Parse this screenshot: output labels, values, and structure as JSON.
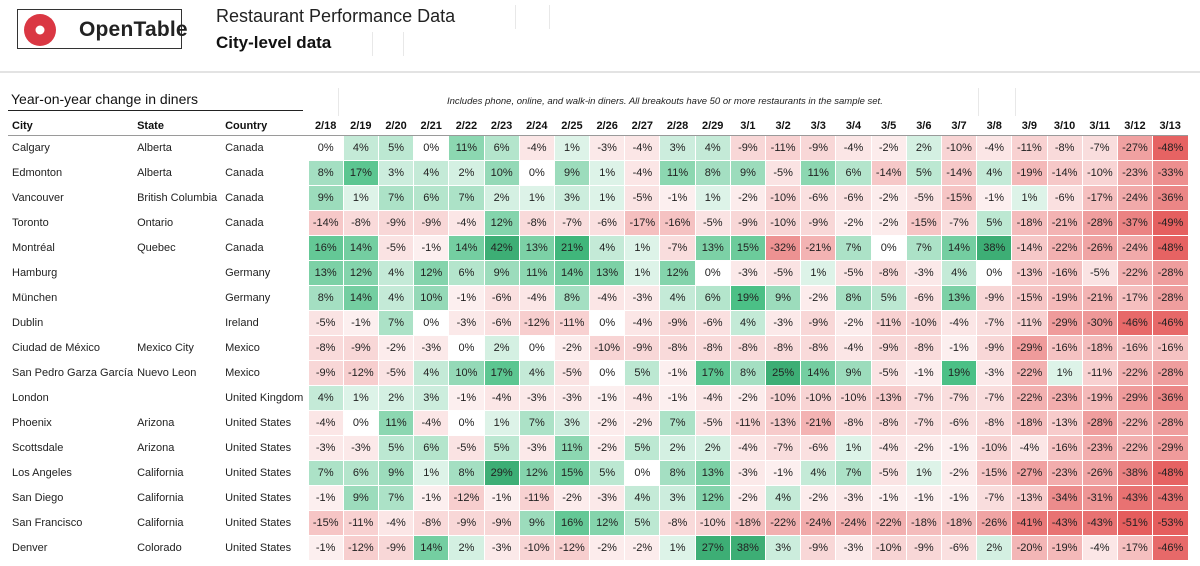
{
  "header": {
    "logo_text": "OpenTable",
    "title": "Restaurant Performance Data",
    "subtitle": "City-level data"
  },
  "section": {
    "title": "Year-on-year change in diners",
    "note": "Includes phone, online, and walk-in diners. All breakouts have 50 or more restaurants in the sample set."
  },
  "colors": {
    "positive": "#3fb07a",
    "negative": "#e35a5a"
  },
  "chart_data": {
    "type": "table",
    "title": "Year-on-year change in diners",
    "subtitle": "City-level data",
    "columns": [
      "City",
      "State",
      "Country"
    ],
    "categories": [
      "2/18",
      "2/19",
      "2/20",
      "2/21",
      "2/22",
      "2/23",
      "2/24",
      "2/25",
      "2/26",
      "2/27",
      "2/28",
      "2/29",
      "3/1",
      "3/2",
      "3/3",
      "3/4",
      "3/5",
      "3/6",
      "3/7",
      "3/8",
      "3/9",
      "3/10",
      "3/11",
      "3/12",
      "3/13"
    ],
    "unit": "%",
    "rows": [
      {
        "city": "Calgary",
        "state": "Alberta",
        "country": "Canada",
        "values": [
          0,
          4,
          5,
          0,
          11,
          6,
          -4,
          1,
          -3,
          -4,
          3,
          4,
          -9,
          -11,
          -9,
          -4,
          -2,
          2,
          -10,
          -4,
          -11,
          -8,
          -7,
          -27,
          -48
        ]
      },
      {
        "city": "Edmonton",
        "state": "Alberta",
        "country": "Canada",
        "values": [
          8,
          17,
          3,
          4,
          2,
          10,
          0,
          9,
          1,
          -4,
          11,
          8,
          9,
          -5,
          11,
          6,
          -14,
          5,
          -14,
          4,
          -19,
          -14,
          -10,
          -23,
          -33
        ]
      },
      {
        "city": "Vancouver",
        "state": "British Columbia",
        "country": "Canada",
        "values": [
          9,
          1,
          7,
          6,
          7,
          2,
          1,
          3,
          1,
          -5,
          -1,
          1,
          -2,
          -10,
          -6,
          -6,
          -2,
          -5,
          -15,
          -1,
          1,
          -6,
          -17,
          -24,
          -36
        ]
      },
      {
        "city": "Toronto",
        "state": "Ontario",
        "country": "Canada",
        "values": [
          -14,
          -8,
          -9,
          -9,
          -4,
          12,
          -8,
          -7,
          -6,
          -17,
          -16,
          -5,
          -9,
          -10,
          -9,
          -2,
          -2,
          -15,
          -7,
          5,
          -18,
          -21,
          -28,
          -37,
          -49
        ]
      },
      {
        "city": "Montréal",
        "state": "Quebec",
        "country": "Canada",
        "values": [
          16,
          14,
          -5,
          -1,
          14,
          42,
          13,
          21,
          4,
          1,
          -7,
          13,
          15,
          -32,
          -21,
          7,
          0,
          7,
          14,
          38,
          -14,
          -22,
          -26,
          -24,
          -48
        ]
      },
      {
        "city": "Hamburg",
        "state": "",
        "country": "Germany",
        "values": [
          13,
          12,
          4,
          12,
          6,
          9,
          11,
          14,
          13,
          1,
          12,
          0,
          -3,
          -5,
          1,
          -5,
          -8,
          -3,
          4,
          0,
          -13,
          -16,
          -5,
          -22,
          -28
        ]
      },
      {
        "city": "München",
        "state": "",
        "country": "Germany",
        "values": [
          8,
          14,
          4,
          10,
          -1,
          -6,
          -4,
          8,
          -4,
          -3,
          4,
          6,
          19,
          9,
          -2,
          8,
          5,
          -6,
          13,
          -9,
          -15,
          -19,
          -21,
          -17,
          -28
        ]
      },
      {
        "city": "Dublin",
        "state": "",
        "country": "Ireland",
        "values": [
          -5,
          -1,
          7,
          0,
          -3,
          -6,
          -12,
          -11,
          0,
          -4,
          -9,
          -6,
          4,
          -3,
          -9,
          -2,
          -11,
          -10,
          -4,
          -7,
          -11,
          -29,
          -30,
          -46,
          -46
        ]
      },
      {
        "city": "Ciudad de México",
        "state": "Mexico City",
        "country": "Mexico",
        "values": [
          -8,
          -9,
          -2,
          -3,
          0,
          2,
          0,
          -2,
          -10,
          -9,
          -8,
          -8,
          -8,
          -8,
          -8,
          -4,
          -9,
          -8,
          -1,
          -9,
          -29,
          -16,
          -18,
          -16,
          -16
        ]
      },
      {
        "city": "San Pedro Garza García",
        "state": "Nuevo Leon",
        "country": "Mexico",
        "values": [
          -9,
          -12,
          -5,
          4,
          10,
          17,
          4,
          -5,
          0,
          5,
          -1,
          17,
          8,
          25,
          14,
          9,
          -5,
          -1,
          19,
          -3,
          -22,
          1,
          -11,
          -22,
          -28
        ]
      },
      {
        "city": "London",
        "state": "",
        "country": "United Kingdom",
        "values": [
          4,
          1,
          2,
          3,
          -1,
          -4,
          -3,
          -3,
          -1,
          -4,
          -1,
          -4,
          -2,
          -10,
          -10,
          -10,
          -13,
          -7,
          -7,
          -7,
          -22,
          -23,
          -19,
          -29,
          -36
        ]
      },
      {
        "city": "Phoenix",
        "state": "Arizona",
        "country": "United States",
        "values": [
          -4,
          0,
          11,
          -4,
          0,
          1,
          7,
          3,
          -2,
          -2,
          7,
          -5,
          -11,
          -13,
          -21,
          -8,
          -8,
          -7,
          -6,
          -8,
          -18,
          -13,
          -28,
          -22,
          -28
        ]
      },
      {
        "city": "Scottsdale",
        "state": "Arizona",
        "country": "United States",
        "values": [
          -3,
          -3,
          5,
          6,
          -5,
          5,
          -3,
          11,
          -2,
          5,
          2,
          2,
          -4,
          -7,
          -6,
          1,
          -4,
          -2,
          -1,
          -10,
          -4,
          -16,
          -23,
          -22,
          -29
        ]
      },
      {
        "city": "Los Angeles",
        "state": "California",
        "country": "United States",
        "values": [
          7,
          6,
          9,
          1,
          8,
          29,
          12,
          15,
          5,
          0,
          8,
          13,
          -3,
          -1,
          4,
          7,
          -5,
          1,
          -2,
          -15,
          -27,
          -23,
          -26,
          -38,
          -48
        ]
      },
      {
        "city": "San Diego",
        "state": "California",
        "country": "United States",
        "values": [
          -1,
          9,
          7,
          -1,
          -12,
          -1,
          -11,
          -2,
          -3,
          4,
          3,
          12,
          -2,
          4,
          -2,
          -3,
          -1,
          -1,
          -1,
          -7,
          -13,
          -34,
          -31,
          -43,
          -43
        ]
      },
      {
        "city": "San Francisco",
        "state": "California",
        "country": "United States",
        "values": [
          -15,
          -11,
          -4,
          -8,
          -9,
          -9,
          9,
          16,
          12,
          5,
          -8,
          -10,
          -18,
          -22,
          -24,
          -24,
          -22,
          -18,
          -18,
          -26,
          -41,
          -43,
          -43,
          -51,
          -53
        ]
      },
      {
        "city": "Denver",
        "state": "Colorado",
        "country": "United States",
        "values": [
          -1,
          -12,
          -9,
          14,
          2,
          -3,
          -10,
          -12,
          -2,
          -2,
          1,
          27,
          38,
          3,
          -9,
          -3,
          -10,
          -9,
          -6,
          2,
          -20,
          -19,
          -4,
          -17,
          -46
        ]
      }
    ]
  }
}
